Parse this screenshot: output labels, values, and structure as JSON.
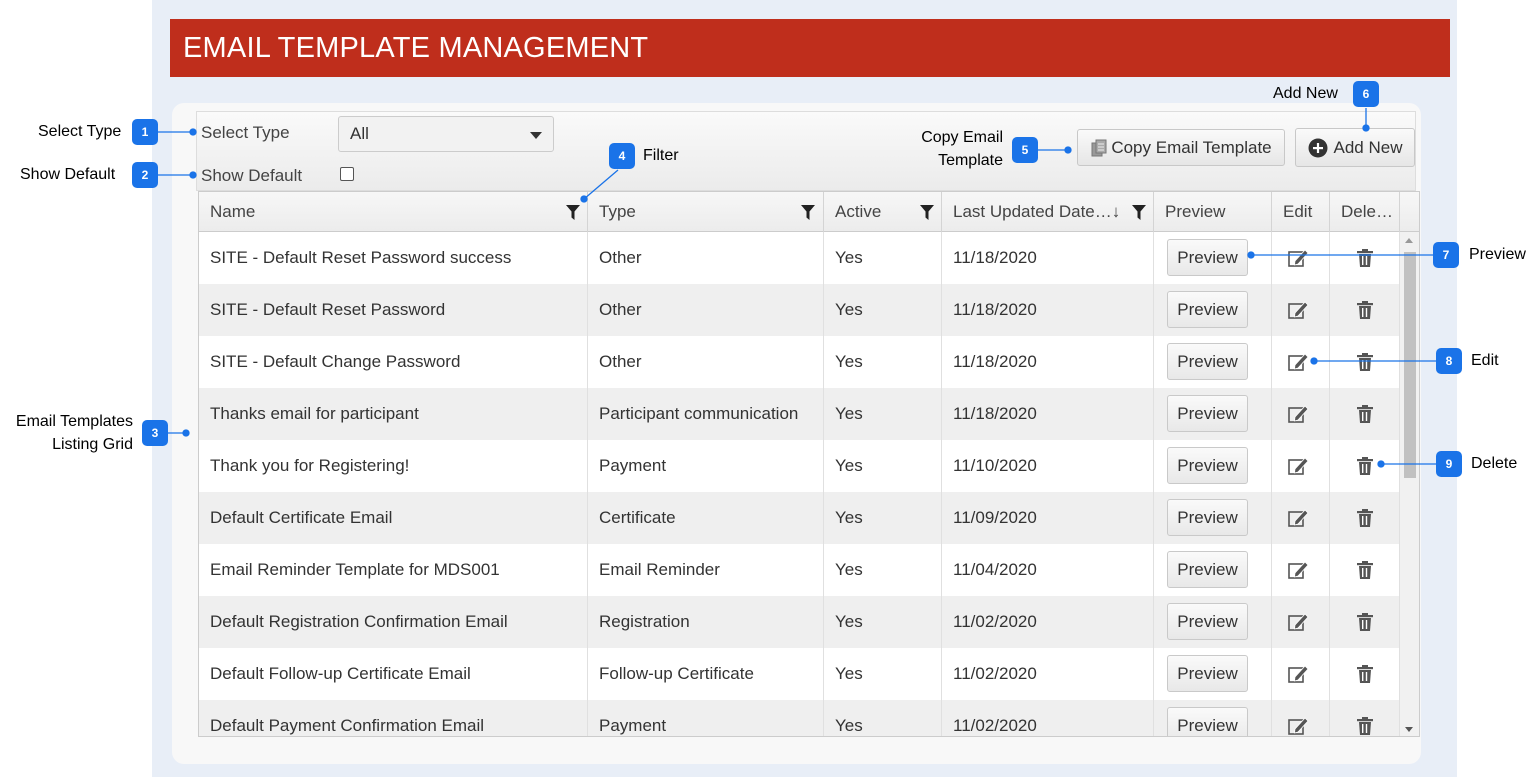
{
  "page": {
    "title": "EMAIL TEMPLATE MANAGEMENT"
  },
  "toolbar": {
    "select_type_label": "Select Type",
    "select_type_value": "All",
    "show_default_label": "Show Default",
    "show_default_checked": false,
    "copy_button_label": "Copy Email Template",
    "add_button_label": "Add New"
  },
  "grid": {
    "columns": [
      "Name",
      "Type",
      "Active",
      "Last Updated Date…",
      "Preview",
      "Edit",
      "Dele…"
    ],
    "sort_indicator": "↓",
    "preview_label": "Preview",
    "rows": [
      {
        "name": "SITE - Default Reset Password success",
        "type": "Other",
        "active": "Yes",
        "date": "11/18/2020"
      },
      {
        "name": "SITE - Default Reset Password",
        "type": "Other",
        "active": "Yes",
        "date": "11/18/2020"
      },
      {
        "name": "SITE - Default Change Password",
        "type": "Other",
        "active": "Yes",
        "date": "11/18/2020"
      },
      {
        "name": "Thanks email for participant",
        "type": "Participant communication",
        "active": "Yes",
        "date": "11/18/2020"
      },
      {
        "name": "Thank you for Registering!",
        "type": "Payment",
        "active": "Yes",
        "date": "11/10/2020"
      },
      {
        "name": "Default Certificate Email",
        "type": "Certificate",
        "active": "Yes",
        "date": "11/09/2020"
      },
      {
        "name": "Email Reminder Template for MDS001",
        "type": "Email Reminder",
        "active": "Yes",
        "date": "11/04/2020"
      },
      {
        "name": "Default Registration Confirmation Email",
        "type": "Registration",
        "active": "Yes",
        "date": "11/02/2020"
      },
      {
        "name": "Default Follow-up Certificate Email",
        "type": "Follow-up Certificate",
        "active": "Yes",
        "date": "11/02/2020"
      },
      {
        "name": "Default Payment Confirmation Email",
        "type": "Payment",
        "active": "Yes",
        "date": "11/02/2020"
      }
    ]
  },
  "annotations": [
    {
      "num": "1",
      "text": "Select Type"
    },
    {
      "num": "2",
      "text": "Show Default"
    },
    {
      "num": "3",
      "text": "Email Templates\nListing Grid"
    },
    {
      "num": "4",
      "text": "Filter"
    },
    {
      "num": "5",
      "text": "Copy Email\nTemplate"
    },
    {
      "num": "6",
      "text": "Add New"
    },
    {
      "num": "7",
      "text": "Preview"
    },
    {
      "num": "8",
      "text": "Edit"
    },
    {
      "num": "9",
      "text": "Delete"
    }
  ],
  "colors": {
    "title_bar": "#bf2e1c",
    "annotation_badge": "#1a73e8",
    "page_background": "#e8eef7"
  },
  "icons": [
    "copy-icon",
    "plus-circle-icon",
    "filter-icon",
    "sort-down-arrow-icon",
    "edit-icon",
    "trash-icon"
  ]
}
